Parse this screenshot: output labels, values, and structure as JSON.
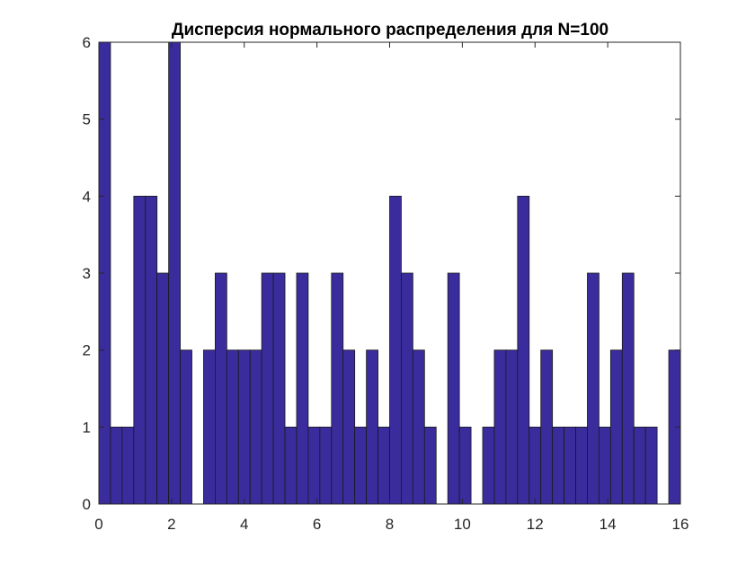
{
  "chart_data": {
    "type": "bar",
    "title": "Дисперсия нормального распределения для N=100",
    "xlabel": "",
    "ylabel": "",
    "xlim": [
      0,
      16
    ],
    "ylim": [
      0,
      6
    ],
    "xticks": [
      0,
      2,
      4,
      6,
      8,
      10,
      12,
      14,
      16
    ],
    "yticks": [
      0,
      1,
      2,
      3,
      4,
      5,
      6
    ],
    "grid": false,
    "bar_color": "#3a2c9c",
    "bin_range": [
      0,
      16
    ],
    "bin_count": 50,
    "values": [
      6,
      1,
      1,
      4,
      4,
      3,
      6,
      2,
      0,
      2,
      3,
      2,
      2,
      2,
      3,
      3,
      1,
      3,
      1,
      1,
      3,
      2,
      1,
      2,
      1,
      4,
      3,
      2,
      1,
      0,
      3,
      1,
      0,
      1,
      2,
      2,
      4,
      1,
      2,
      1,
      1,
      1,
      3,
      1,
      2,
      3,
      1,
      1,
      0,
      2
    ]
  }
}
